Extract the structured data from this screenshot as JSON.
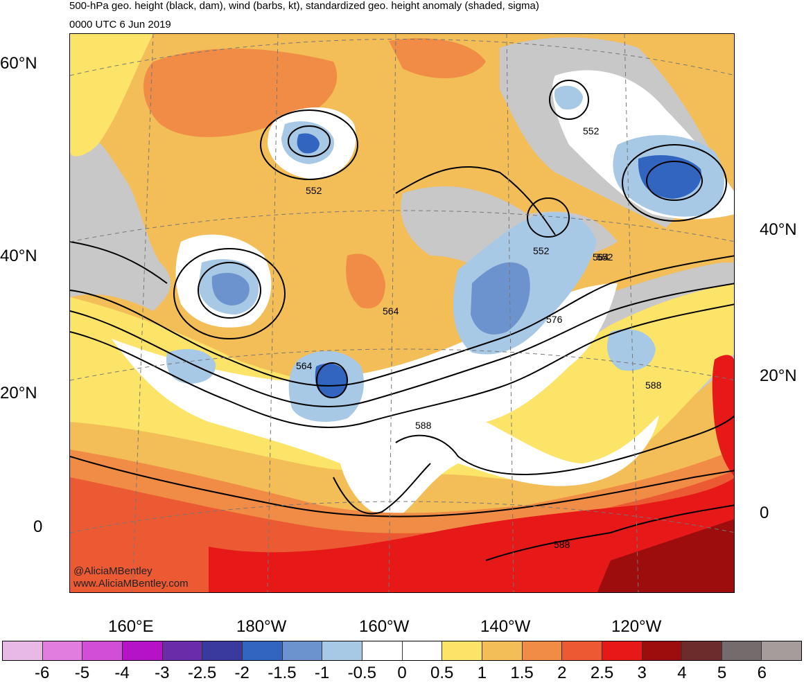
{
  "header": {
    "title": "500-hPa geo. height (black, dam), wind (barbs, kt), standardized geo. height anomaly (shaded, sigma)",
    "valid_time": "0000 UTC 6 Jun 2019"
  },
  "map": {
    "lat_labels_left": [
      "60°N",
      "40°N",
      "20°N",
      "0"
    ],
    "lat_labels_right": [
      "40°N",
      "20°N",
      "0"
    ],
    "lon_labels_bottom": [
      "160°E",
      "180°W",
      "160°W",
      "140°W",
      "120°W"
    ],
    "contour_labels": [
      "552",
      "552",
      "552",
      "552",
      "564",
      "564",
      "564",
      "576",
      "588",
      "588",
      "588"
    ],
    "credit_lines": [
      "@AliciaMBentley",
      "www.AliciaMBentley.com"
    ]
  },
  "colorbar": {
    "tick_labels": [
      "-6",
      "-5",
      "-4",
      "-3",
      "-2.5",
      "-2",
      "-1.5",
      "-1",
      "-0.5",
      "0",
      "0.5",
      "1",
      "1.5",
      "2",
      "2.5",
      "3",
      "4",
      "5",
      "6"
    ],
    "colors": [
      "#e8b9e6",
      "#e07ddf",
      "#d24ed6",
      "#b513c8",
      "#6a2ca8",
      "#3a3a9e",
      "#3165c0",
      "#6c93cd",
      "#a7c9e5",
      "#ffffff",
      "#ffffff",
      "#fbe468",
      "#f3bd57",
      "#f08c45",
      "#ec5a33",
      "#e61818",
      "#9e0d0d",
      "#6c2c2c",
      "#746c6c",
      "#a79c9c"
    ]
  },
  "colors": {
    "land_gray": "#c8c8c8",
    "contour": "#000000",
    "coast": "#555555"
  }
}
